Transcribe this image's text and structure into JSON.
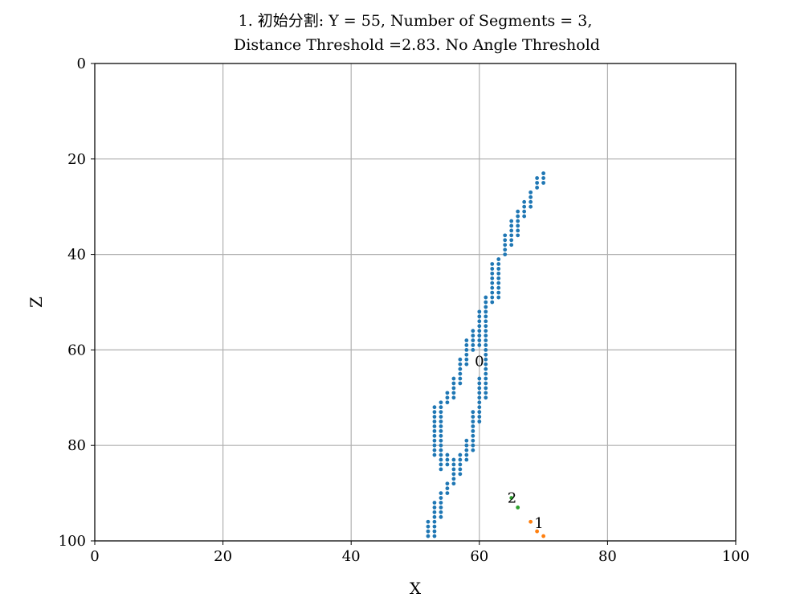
{
  "chart_data": {
    "type": "scatter",
    "title_lines": [
      "1. 初始分割: Y = 55, Number of Segments = 3,",
      "Distance Threshold =2.83. No Angle Threshold"
    ],
    "xlabel": "X",
    "ylabel": "Z",
    "xlim": [
      0,
      100
    ],
    "ylim": [
      0,
      100
    ],
    "y_inverted": true,
    "grid": true,
    "x_ticks": [
      0,
      20,
      40,
      60,
      80,
      100
    ],
    "y_ticks": [
      0,
      20,
      40,
      60,
      80,
      100
    ],
    "series": [
      {
        "label": "0",
        "color": "#1f77b4",
        "label_at": [
          60,
          62.5
        ],
        "points": [
          [
            70,
            23
          ],
          [
            70,
            24
          ],
          [
            70,
            25
          ],
          [
            69,
            24
          ],
          [
            69,
            25
          ],
          [
            69,
            26
          ],
          [
            68,
            27
          ],
          [
            68,
            28
          ],
          [
            68,
            29
          ],
          [
            68,
            30
          ],
          [
            67,
            29
          ],
          [
            67,
            30
          ],
          [
            67,
            31
          ],
          [
            67,
            32
          ],
          [
            66,
            31
          ],
          [
            66,
            32
          ],
          [
            66,
            33
          ],
          [
            66,
            34
          ],
          [
            66,
            35
          ],
          [
            66,
            36
          ],
          [
            65,
            33
          ],
          [
            65,
            34
          ],
          [
            65,
            35
          ],
          [
            65,
            36
          ],
          [
            65,
            37
          ],
          [
            65,
            38
          ],
          [
            64,
            36
          ],
          [
            64,
            37
          ],
          [
            64,
            38
          ],
          [
            64,
            39
          ],
          [
            64,
            40
          ],
          [
            63,
            41
          ],
          [
            63,
            42
          ],
          [
            63,
            43
          ],
          [
            63,
            44
          ],
          [
            63,
            45
          ],
          [
            63,
            46
          ],
          [
            63,
            47
          ],
          [
            63,
            48
          ],
          [
            63,
            49
          ],
          [
            62,
            42
          ],
          [
            62,
            43
          ],
          [
            62,
            44
          ],
          [
            62,
            45
          ],
          [
            62,
            46
          ],
          [
            62,
            47
          ],
          [
            62,
            48
          ],
          [
            62,
            49
          ],
          [
            62,
            50
          ],
          [
            61,
            49
          ],
          [
            61,
            50
          ],
          [
            61,
            51
          ],
          [
            61,
            52
          ],
          [
            61,
            53
          ],
          [
            61,
            54
          ],
          [
            61,
            55
          ],
          [
            61,
            56
          ],
          [
            61,
            57
          ],
          [
            61,
            58
          ],
          [
            61,
            59
          ],
          [
            61,
            60
          ],
          [
            61,
            61
          ],
          [
            61,
            62
          ],
          [
            61,
            63
          ],
          [
            61,
            64
          ],
          [
            61,
            65
          ],
          [
            61,
            66
          ],
          [
            61,
            67
          ],
          [
            61,
            68
          ],
          [
            61,
            69
          ],
          [
            61,
            70
          ],
          [
            60,
            52
          ],
          [
            60,
            53
          ],
          [
            60,
            54
          ],
          [
            60,
            55
          ],
          [
            60,
            56
          ],
          [
            60,
            57
          ],
          [
            60,
            58
          ],
          [
            60,
            59
          ],
          [
            60,
            66
          ],
          [
            60,
            67
          ],
          [
            60,
            68
          ],
          [
            60,
            69
          ],
          [
            60,
            70
          ],
          [
            60,
            71
          ],
          [
            60,
            72
          ],
          [
            60,
            73
          ],
          [
            60,
            74
          ],
          [
            60,
            75
          ],
          [
            59,
            56
          ],
          [
            59,
            57
          ],
          [
            59,
            58
          ],
          [
            59,
            59
          ],
          [
            59,
            60
          ],
          [
            59,
            73
          ],
          [
            59,
            74
          ],
          [
            59,
            75
          ],
          [
            59,
            76
          ],
          [
            59,
            77
          ],
          [
            59,
            78
          ],
          [
            59,
            79
          ],
          [
            59,
            80
          ],
          [
            59,
            81
          ],
          [
            58,
            58
          ],
          [
            58,
            59
          ],
          [
            58,
            60
          ],
          [
            58,
            61
          ],
          [
            58,
            62
          ],
          [
            58,
            63
          ],
          [
            58,
            79
          ],
          [
            58,
            80
          ],
          [
            58,
            81
          ],
          [
            58,
            82
          ],
          [
            58,
            83
          ],
          [
            57,
            62
          ],
          [
            57,
            63
          ],
          [
            57,
            64
          ],
          [
            57,
            65
          ],
          [
            57,
            66
          ],
          [
            57,
            67
          ],
          [
            57,
            82
          ],
          [
            57,
            83
          ],
          [
            57,
            84
          ],
          [
            57,
            85
          ],
          [
            57,
            86
          ],
          [
            56,
            66
          ],
          [
            56,
            67
          ],
          [
            56,
            68
          ],
          [
            56,
            69
          ],
          [
            56,
            70
          ],
          [
            56,
            83
          ],
          [
            56,
            84
          ],
          [
            56,
            85
          ],
          [
            56,
            86
          ],
          [
            56,
            87
          ],
          [
            56,
            88
          ],
          [
            55,
            69
          ],
          [
            55,
            70
          ],
          [
            55,
            71
          ],
          [
            55,
            82
          ],
          [
            55,
            83
          ],
          [
            55,
            84
          ],
          [
            55,
            88
          ],
          [
            55,
            89
          ],
          [
            55,
            90
          ],
          [
            54,
            71
          ],
          [
            54,
            72
          ],
          [
            54,
            73
          ],
          [
            54,
            74
          ],
          [
            54,
            75
          ],
          [
            54,
            76
          ],
          [
            54,
            77
          ],
          [
            54,
            78
          ],
          [
            54,
            79
          ],
          [
            54,
            80
          ],
          [
            54,
            81
          ],
          [
            54,
            82
          ],
          [
            54,
            83
          ],
          [
            54,
            84
          ],
          [
            54,
            85
          ],
          [
            54,
            90
          ],
          [
            54,
            91
          ],
          [
            54,
            92
          ],
          [
            54,
            93
          ],
          [
            54,
            94
          ],
          [
            54,
            95
          ],
          [
            53,
            72
          ],
          [
            53,
            73
          ],
          [
            53,
            74
          ],
          [
            53,
            75
          ],
          [
            53,
            76
          ],
          [
            53,
            77
          ],
          [
            53,
            78
          ],
          [
            53,
            79
          ],
          [
            53,
            80
          ],
          [
            53,
            81
          ],
          [
            53,
            82
          ],
          [
            53,
            92
          ],
          [
            53,
            93
          ],
          [
            53,
            94
          ],
          [
            53,
            95
          ],
          [
            53,
            96
          ],
          [
            53,
            97
          ],
          [
            53,
            98
          ],
          [
            53,
            99
          ],
          [
            52,
            96
          ],
          [
            52,
            97
          ],
          [
            52,
            98
          ],
          [
            52,
            99
          ]
        ]
      },
      {
        "label": "1",
        "color": "#ff7f0e",
        "label_at": [
          69.3,
          96.5
        ],
        "points": [
          [
            68,
            96
          ],
          [
            69,
            98
          ],
          [
            70,
            99
          ]
        ]
      },
      {
        "label": "2",
        "color": "#2ca02c",
        "label_at": [
          65.1,
          91.2
        ],
        "points": [
          [
            65,
            91
          ],
          [
            66,
            93
          ]
        ]
      }
    ]
  }
}
